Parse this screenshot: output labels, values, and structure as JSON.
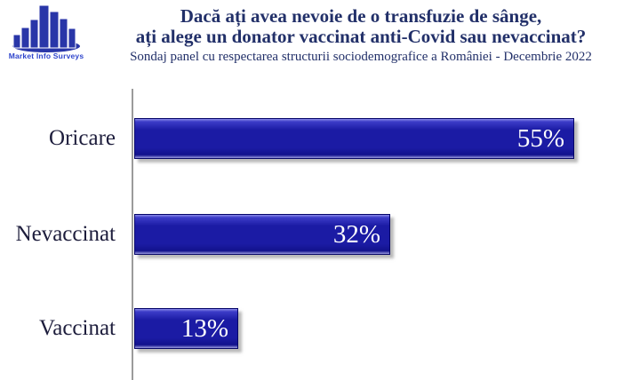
{
  "logo": {
    "text": "Market Info Surveys"
  },
  "header": {
    "title_line1": "Dacă ați avea nevoie de o transfuzie de sânge,",
    "title_line2": "ați alege un donator vaccinat anti-Covid sau nevaccinat?",
    "subtitle": "Sondaj panel cu respectarea structurii sociodemografice a României - Decembrie 2022"
  },
  "colors": {
    "bar_fill": "#1B1BA4",
    "bar_edge": "#050568",
    "title_navy": "#223069",
    "label_dark": "#1D1D3C",
    "axis_gray": "#9B9B9B",
    "logo_blue": "#2936A8",
    "logo_text_blue": "#2F45CC"
  },
  "chart_data": {
    "type": "bar",
    "orientation": "horizontal",
    "title": "Dacă ați avea nevoie de o transfuzie de sânge, ați alege un donator vaccinat anti-Covid sau nevaccinat?",
    "subtitle": "Sondaj panel cu respectarea structurii sociodemografice a României - Decembrie 2022",
    "categories": [
      "Oricare",
      "Nevaccinat",
      "Vaccinat"
    ],
    "values": [
      55,
      32,
      13
    ],
    "value_labels": [
      "55%",
      "32%",
      "13%"
    ],
    "xlabel": "",
    "ylabel": "",
    "xlim": [
      0,
      60
    ],
    "grid": false,
    "legend": false,
    "value_label_position": "inside-right"
  }
}
